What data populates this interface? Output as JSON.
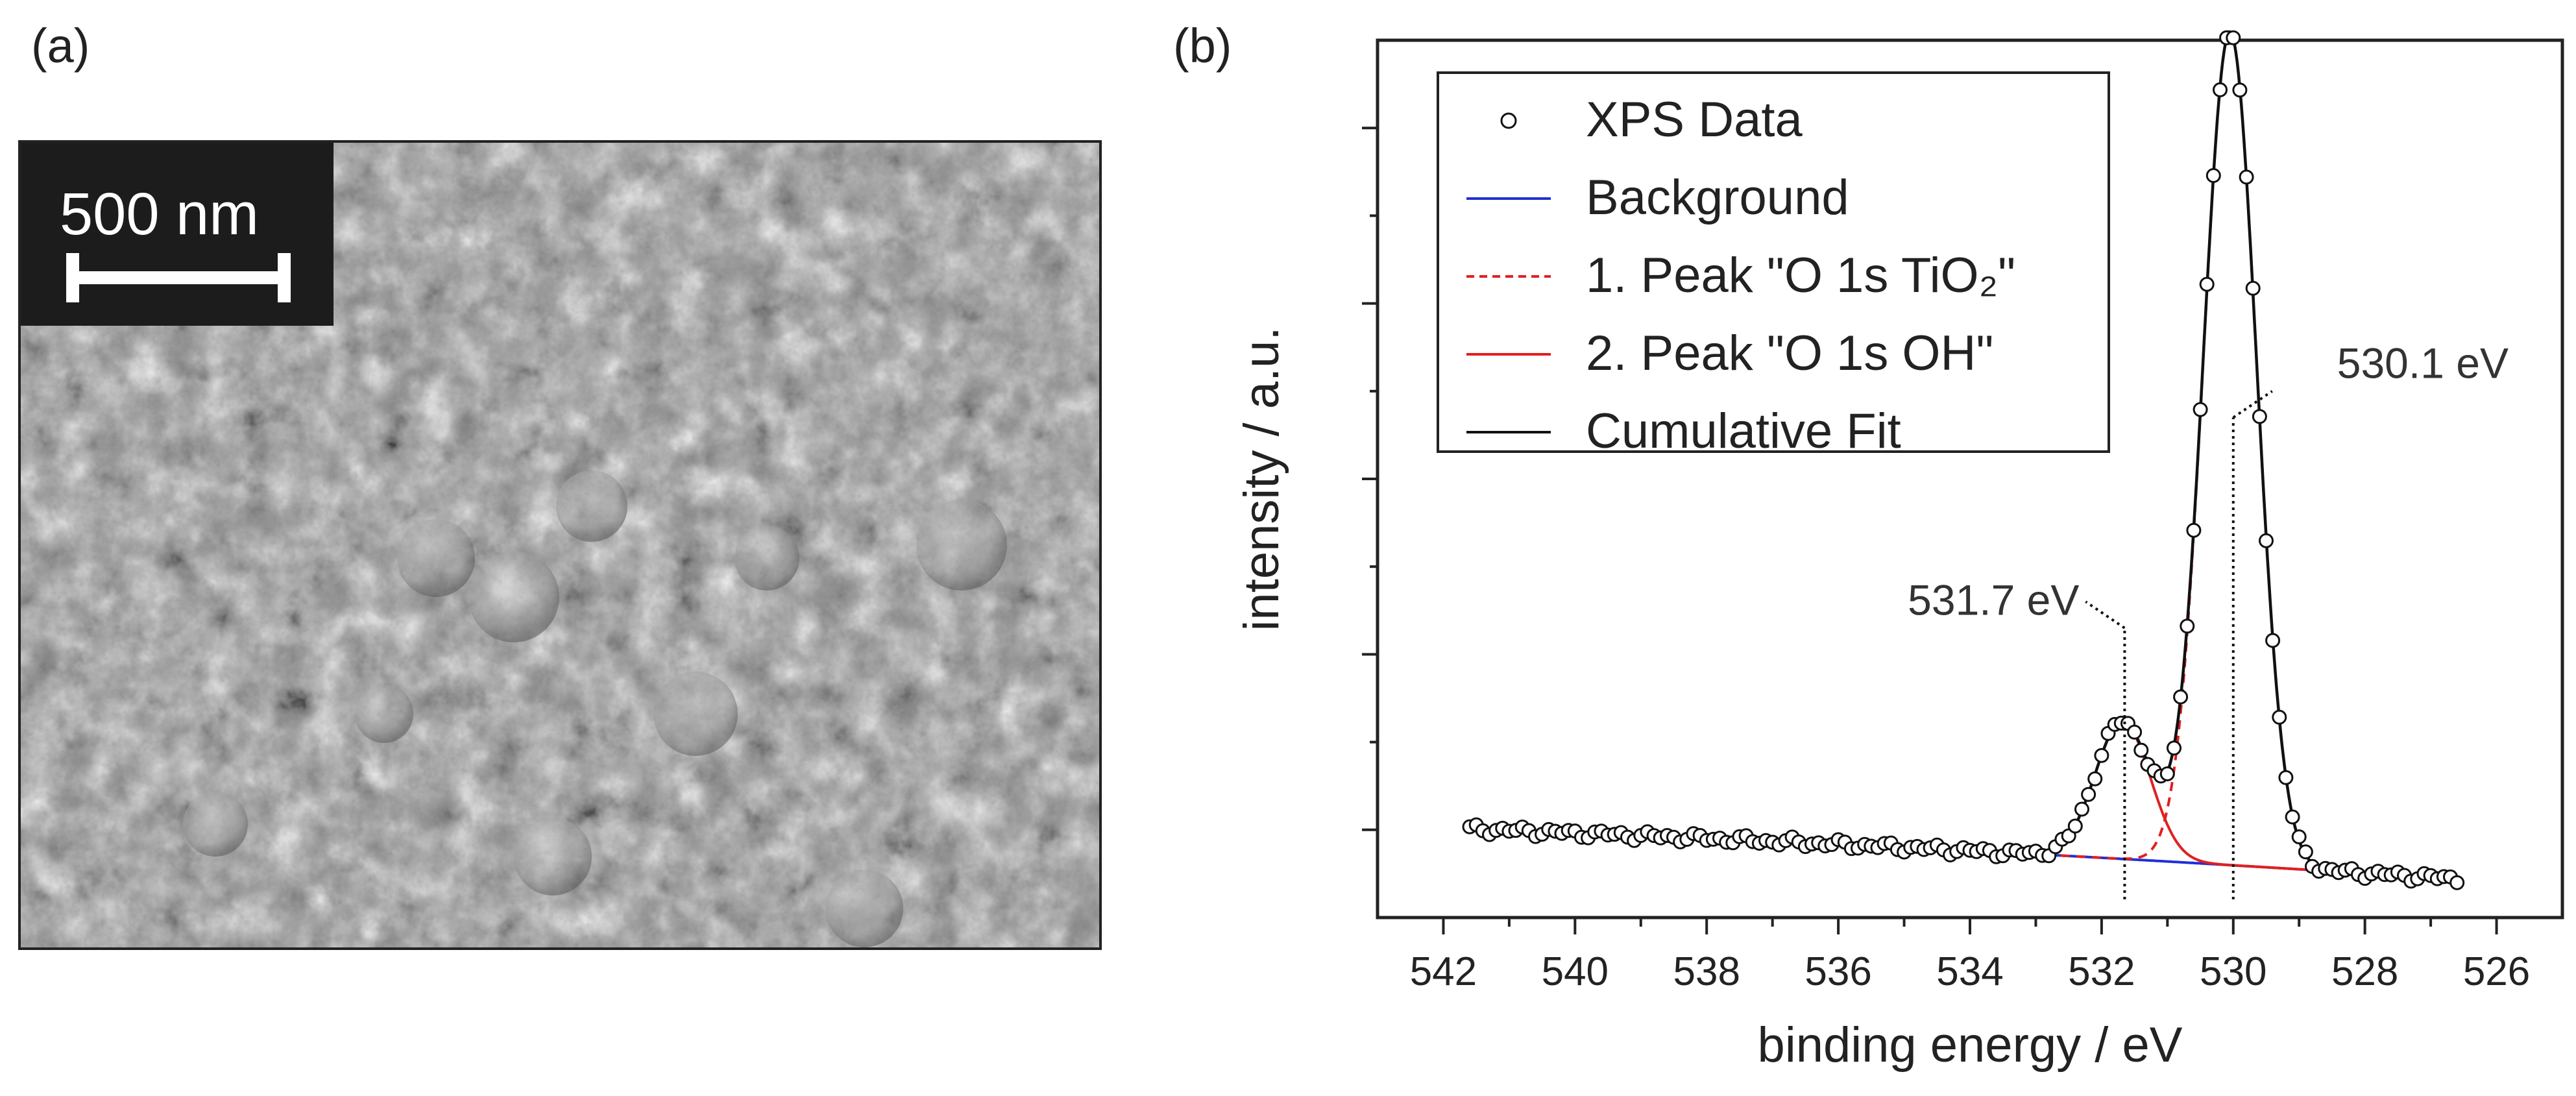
{
  "panels": {
    "a": {
      "label": "(a)",
      "scale_bar": "500 nm"
    },
    "b": {
      "label": "(b)"
    }
  },
  "chart_data": {
    "type": "scatter",
    "title": "",
    "xlabel": "binding energy / eV",
    "ylabel": "intensity / a.u.",
    "xlim": [
      543,
      525
    ],
    "x_reversed": true,
    "ylim": [
      0,
      100
    ],
    "y_tick_labels_shown": false,
    "y_ticks": [
      10,
      30,
      50,
      70,
      90
    ],
    "x_ticks": [
      542,
      540,
      538,
      536,
      534,
      532,
      530,
      528,
      526
    ],
    "legend": {
      "placement": "top-left",
      "entries": [
        {
          "text": "XPS Data",
          "style": "open-circle"
        },
        {
          "text": "Background",
          "style": "line",
          "color": "#1f2fd6"
        },
        {
          "text": "1. Peak \"O 1s TiO₂\"",
          "style": "dashed",
          "color": "#e02020"
        },
        {
          "text": "2. Peak \"O 1s OH\"",
          "style": "line",
          "color": "#e02020"
        },
        {
          "text": "Cumulative Fit",
          "style": "line",
          "color": "#111111"
        }
      ]
    },
    "annotations": [
      {
        "text": "530.1 eV",
        "x": 530.0
      },
      {
        "text": "531.7 eV",
        "x": 531.65
      }
    ],
    "series": [
      {
        "name": "XPS Data",
        "kind": "points",
        "x_range": [
          541.6,
          526.6
        ],
        "step": 0.1,
        "model": {
          "bg_start": 10.1,
          "bg_end": 4.4,
          "bg_hump": 1.0,
          "peak1": {
            "center": 530.05,
            "height": 95.0,
            "width": 0.6
          },
          "peak2": {
            "center": 531.68,
            "height": 15.7,
            "width": 0.62
          }
        }
      },
      {
        "name": "Background",
        "kind": "line",
        "color": "#1f2fd6"
      },
      {
        "name": "1. Peak \"O 1s TiO₂\"",
        "kind": "dashed",
        "color": "#e02020"
      },
      {
        "name": "2. Peak \"O 1s OH\"",
        "kind": "line",
        "color": "#e02020"
      },
      {
        "name": "Cumulative Fit",
        "kind": "line",
        "color": "#111111"
      }
    ]
  }
}
